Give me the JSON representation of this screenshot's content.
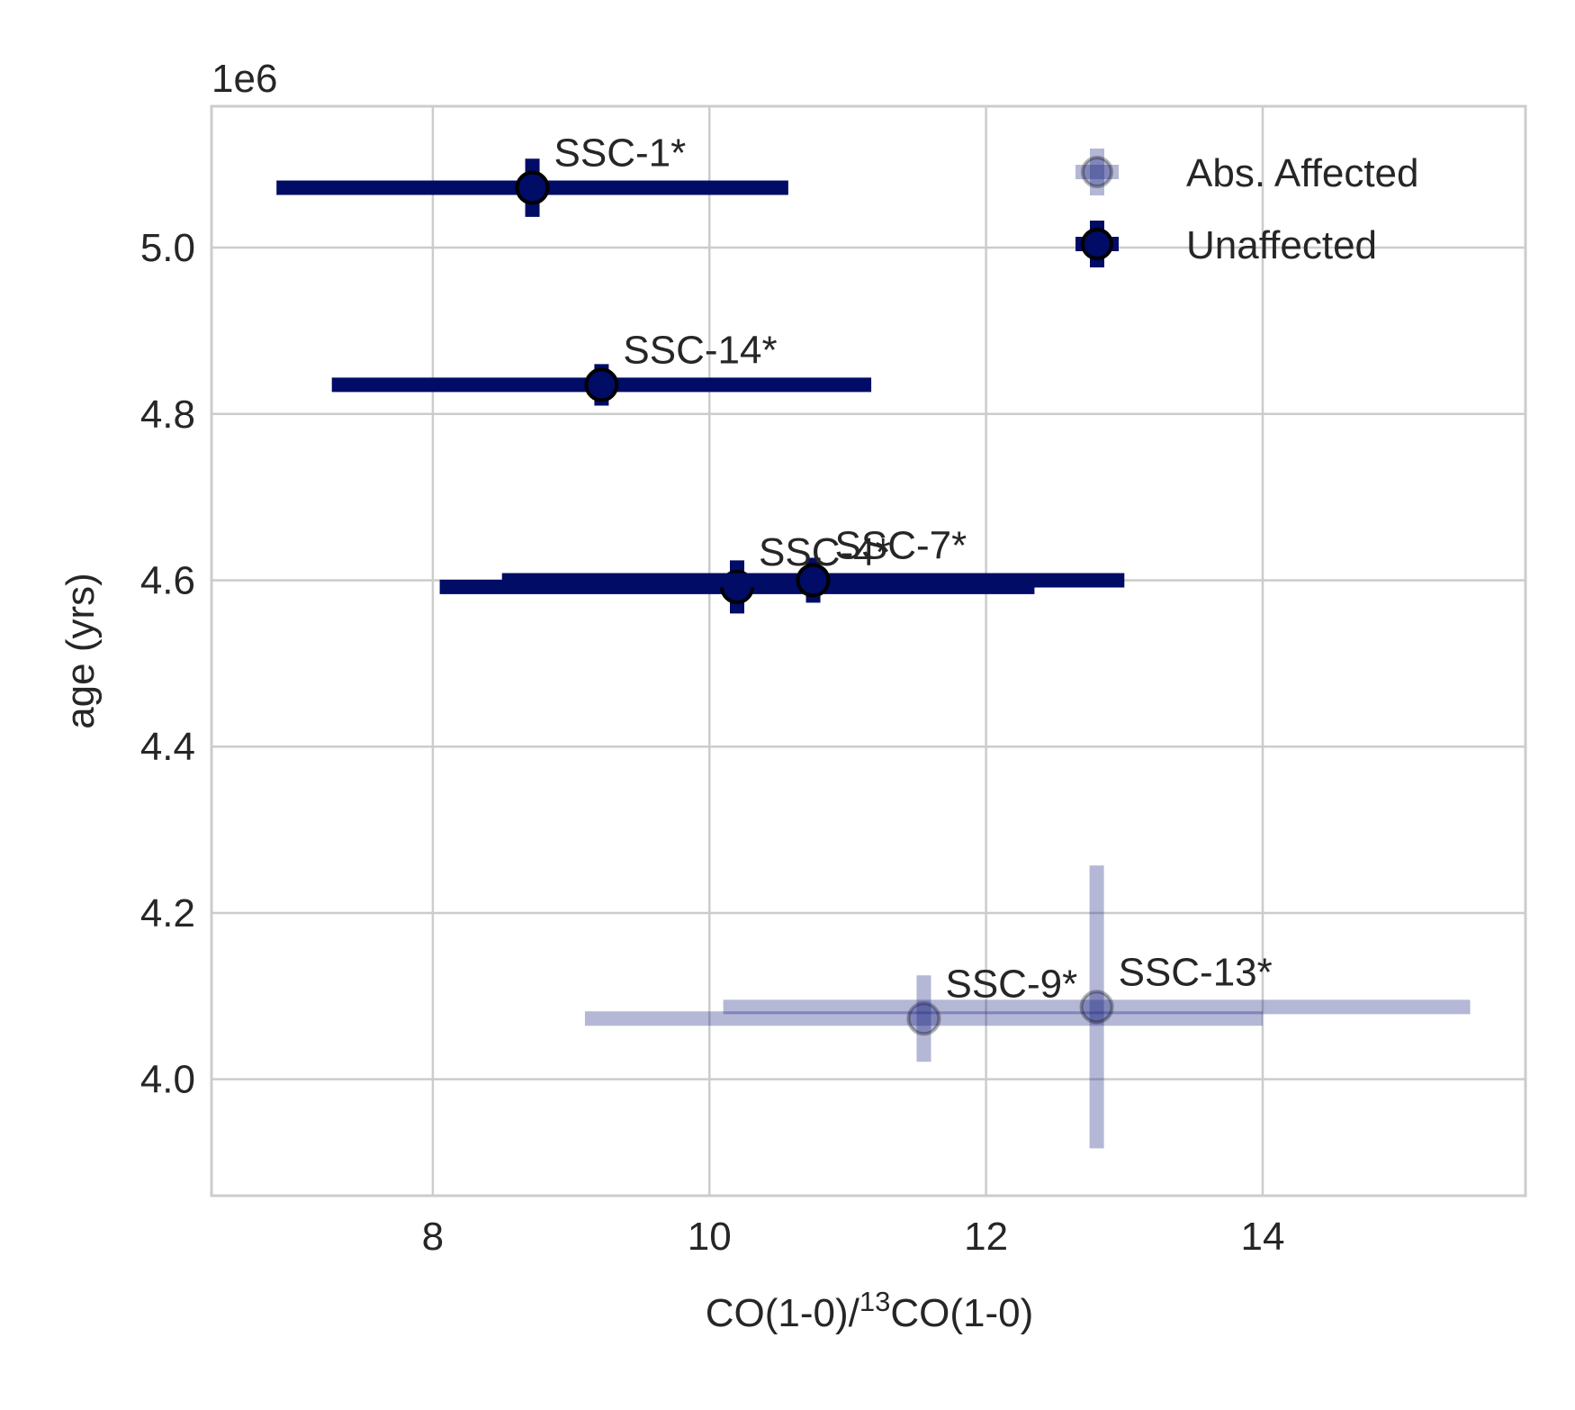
{
  "chart_data": {
    "type": "scatter",
    "title": "",
    "xlabel": {
      "prefix": "CO(1-0)/",
      "superscript": "13",
      "suffix": "CO(1-0)"
    },
    "ylabel": "age (yrs)",
    "y_offset_text": "1e6",
    "xlim": [
      6.4,
      15.9
    ],
    "ylim": [
      3.86,
      5.17
    ],
    "x_ticks": [
      8,
      10,
      12,
      14
    ],
    "x_tick_labels": [
      "8",
      "10",
      "12",
      "14"
    ],
    "y_ticks": [
      4.0,
      4.2,
      4.4,
      4.6,
      4.8,
      5.0
    ],
    "y_tick_labels": [
      "4.0",
      "4.2",
      "4.4",
      "4.6",
      "4.8",
      "5.0"
    ],
    "grid": true,
    "legend_position": "top-right",
    "series": [
      {
        "name": "Abs. Affected",
        "color": "#1a237e",
        "alpha": 0.33,
        "points": [
          {
            "label": "SSC-9*",
            "x": 11.55,
            "y": 4.073,
            "xerr": [
              2.45,
              2.45
            ],
            "yerr": [
              0.052,
              0.052
            ]
          },
          {
            "label": "SSC-13*",
            "x": 12.8,
            "y": 4.087,
            "xerr": [
              2.7,
              2.7
            ],
            "yerr": [
              0.17,
              0.17
            ]
          }
        ]
      },
      {
        "name": "Unaffected",
        "color": "#000c66",
        "alpha": 1.0,
        "points": [
          {
            "label": "SSC-1*",
            "x": 8.72,
            "y": 5.072,
            "xerr": [
              1.85,
              1.85
            ],
            "yerr": [
              0.035,
              0.035
            ]
          },
          {
            "label": "SSC-14*",
            "x": 9.22,
            "y": 4.835,
            "xerr": [
              1.95,
              1.95
            ],
            "yerr": [
              0.025,
              0.025
            ]
          },
          {
            "label": "SSC-4*",
            "x": 10.2,
            "y": 4.592,
            "xerr": [
              2.15,
              2.15
            ],
            "yerr": [
              0.032,
              0.032
            ]
          },
          {
            "label": "SSC-7*",
            "x": 10.75,
            "y": 4.6,
            "xerr": [
              2.25,
              2.25
            ],
            "yerr": [
              0.027,
              0.027
            ]
          }
        ]
      }
    ]
  }
}
